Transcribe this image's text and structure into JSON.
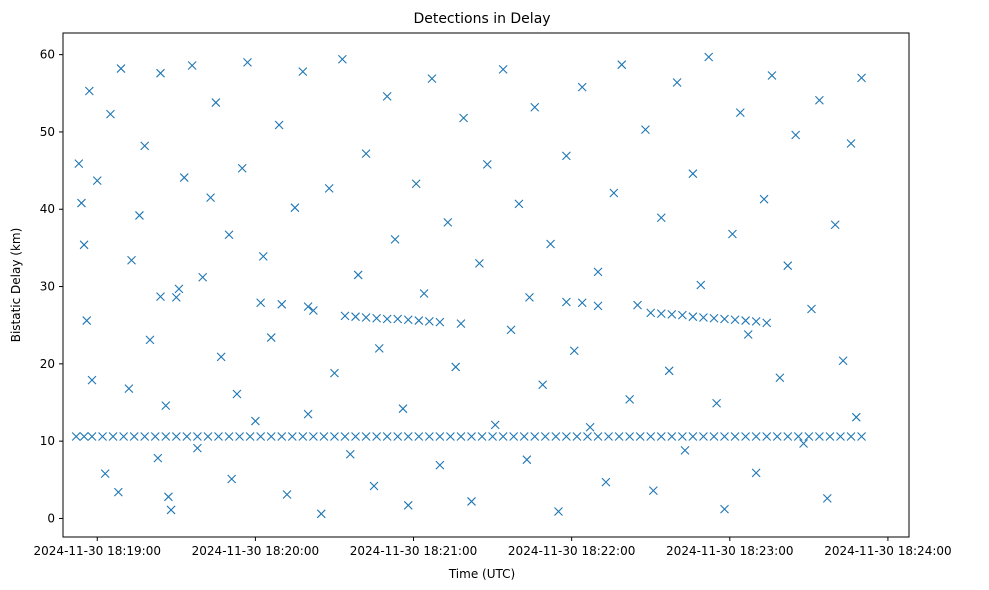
{
  "chart_data": {
    "type": "scatter",
    "title": "Detections in Delay",
    "xlabel": "Time (UTC)",
    "ylabel": "Bistatic Delay (km)",
    "x_unit": "time (UTC)",
    "xlim": [
      "2024-11-30 18:18:47",
      "2024-11-30 18:24:08"
    ],
    "ylim": [
      -2.4,
      62.8
    ],
    "x_ticks": [
      "2024-11-30 18:19:00",
      "2024-11-30 18:20:00",
      "2024-11-30 18:21:00",
      "2024-11-30 18:22:00",
      "2024-11-30 18:23:00",
      "2024-11-30 18:24:00"
    ],
    "y_ticks": [
      0,
      10,
      20,
      30,
      40,
      50,
      60
    ],
    "grid": false,
    "legend": "none",
    "marker": "x",
    "marker_color": "#1f77b4",
    "series": [
      {
        "note": "approximate reconstruction of the dense scatter; values read from the axes",
        "points": [
          [
            "2024-11-30 18:18:52",
            10.6
          ],
          [
            "2024-11-30 18:18:55",
            10.6
          ],
          [
            "2024-11-30 18:18:58",
            10.6
          ],
          [
            "2024-11-30 18:19:02",
            10.6
          ],
          [
            "2024-11-30 18:19:06",
            10.6
          ],
          [
            "2024-11-30 18:19:10",
            10.6
          ],
          [
            "2024-11-30 18:19:14",
            10.6
          ],
          [
            "2024-11-30 18:19:18",
            10.6
          ],
          [
            "2024-11-30 18:19:22",
            10.6
          ],
          [
            "2024-11-30 18:19:26",
            10.6
          ],
          [
            "2024-11-30 18:19:30",
            10.6
          ],
          [
            "2024-11-30 18:19:34",
            10.6
          ],
          [
            "2024-11-30 18:19:38",
            10.6
          ],
          [
            "2024-11-30 18:19:42",
            10.6
          ],
          [
            "2024-11-30 18:19:46",
            10.6
          ],
          [
            "2024-11-30 18:19:50",
            10.6
          ],
          [
            "2024-11-30 18:19:54",
            10.6
          ],
          [
            "2024-11-30 18:19:58",
            10.6
          ],
          [
            "2024-11-30 18:20:02",
            10.6
          ],
          [
            "2024-11-30 18:20:06",
            10.6
          ],
          [
            "2024-11-30 18:20:10",
            10.6
          ],
          [
            "2024-11-30 18:20:14",
            10.6
          ],
          [
            "2024-11-30 18:20:18",
            10.6
          ],
          [
            "2024-11-30 18:20:22",
            10.6
          ],
          [
            "2024-11-30 18:20:26",
            10.6
          ],
          [
            "2024-11-30 18:20:30",
            10.6
          ],
          [
            "2024-11-30 18:20:34",
            10.6
          ],
          [
            "2024-11-30 18:20:38",
            10.6
          ],
          [
            "2024-11-30 18:20:42",
            10.6
          ],
          [
            "2024-11-30 18:20:46",
            10.6
          ],
          [
            "2024-11-30 18:20:50",
            10.6
          ],
          [
            "2024-11-30 18:20:54",
            10.6
          ],
          [
            "2024-11-30 18:20:58",
            10.6
          ],
          [
            "2024-11-30 18:21:02",
            10.6
          ],
          [
            "2024-11-30 18:21:06",
            10.6
          ],
          [
            "2024-11-30 18:21:10",
            10.6
          ],
          [
            "2024-11-30 18:21:14",
            10.6
          ],
          [
            "2024-11-30 18:21:18",
            10.6
          ],
          [
            "2024-11-30 18:21:22",
            10.6
          ],
          [
            "2024-11-30 18:21:26",
            10.6
          ],
          [
            "2024-11-30 18:21:30",
            10.6
          ],
          [
            "2024-11-30 18:21:34",
            10.6
          ],
          [
            "2024-11-30 18:21:38",
            10.6
          ],
          [
            "2024-11-30 18:21:42",
            10.6
          ],
          [
            "2024-11-30 18:21:46",
            10.6
          ],
          [
            "2024-11-30 18:21:50",
            10.6
          ],
          [
            "2024-11-30 18:21:54",
            10.6
          ],
          [
            "2024-11-30 18:21:58",
            10.6
          ],
          [
            "2024-11-30 18:22:02",
            10.6
          ],
          [
            "2024-11-30 18:22:06",
            10.6
          ],
          [
            "2024-11-30 18:22:10",
            10.6
          ],
          [
            "2024-11-30 18:22:14",
            10.6
          ],
          [
            "2024-11-30 18:22:18",
            10.6
          ],
          [
            "2024-11-30 18:22:22",
            10.6
          ],
          [
            "2024-11-30 18:22:26",
            10.6
          ],
          [
            "2024-11-30 18:22:30",
            10.6
          ],
          [
            "2024-11-30 18:22:34",
            10.6
          ],
          [
            "2024-11-30 18:22:38",
            10.6
          ],
          [
            "2024-11-30 18:22:42",
            10.6
          ],
          [
            "2024-11-30 18:22:46",
            10.6
          ],
          [
            "2024-11-30 18:22:50",
            10.6
          ],
          [
            "2024-11-30 18:22:54",
            10.6
          ],
          [
            "2024-11-30 18:22:58",
            10.6
          ],
          [
            "2024-11-30 18:23:02",
            10.6
          ],
          [
            "2024-11-30 18:23:06",
            10.6
          ],
          [
            "2024-11-30 18:23:10",
            10.6
          ],
          [
            "2024-11-30 18:23:14",
            10.6
          ],
          [
            "2024-11-30 18:23:18",
            10.6
          ],
          [
            "2024-11-30 18:23:22",
            10.6
          ],
          [
            "2024-11-30 18:23:26",
            10.6
          ],
          [
            "2024-11-30 18:23:30",
            10.6
          ],
          [
            "2024-11-30 18:23:34",
            10.6
          ],
          [
            "2024-11-30 18:23:38",
            10.6
          ],
          [
            "2024-11-30 18:23:42",
            10.6
          ],
          [
            "2024-11-30 18:23:46",
            10.6
          ],
          [
            "2024-11-30 18:23:50",
            10.6
          ],
          [
            "2024-11-30 18:20:34",
            26.2
          ],
          [
            "2024-11-30 18:20:38",
            26.1
          ],
          [
            "2024-11-30 18:20:42",
            26.0
          ],
          [
            "2024-11-30 18:20:46",
            25.9
          ],
          [
            "2024-11-30 18:20:50",
            25.8
          ],
          [
            "2024-11-30 18:20:54",
            25.8
          ],
          [
            "2024-11-30 18:20:58",
            25.7
          ],
          [
            "2024-11-30 18:21:02",
            25.6
          ],
          [
            "2024-11-30 18:21:06",
            25.5
          ],
          [
            "2024-11-30 18:22:30",
            26.6
          ],
          [
            "2024-11-30 18:22:34",
            26.5
          ],
          [
            "2024-11-30 18:22:38",
            26.4
          ],
          [
            "2024-11-30 18:22:42",
            26.3
          ],
          [
            "2024-11-30 18:22:46",
            26.1
          ],
          [
            "2024-11-30 18:22:50",
            26.0
          ],
          [
            "2024-11-30 18:22:54",
            25.9
          ],
          [
            "2024-11-30 18:22:58",
            25.8
          ],
          [
            "2024-11-30 18:23:02",
            25.7
          ],
          [
            "2024-11-30 18:23:06",
            25.6
          ],
          [
            "2024-11-30 18:23:10",
            25.5
          ],
          [
            "2024-11-30 18:23:14",
            25.3
          ],
          [
            "2024-11-30 18:19:24",
            28.7
          ],
          [
            "2024-11-30 18:19:30",
            28.6
          ],
          [
            "2024-11-30 18:20:02",
            27.9
          ],
          [
            "2024-11-30 18:20:10",
            27.7
          ],
          [
            "2024-11-30 18:20:20",
            27.4
          ],
          [
            "2024-11-30 18:21:44",
            28.6
          ],
          [
            "2024-11-30 18:21:58",
            28.0
          ],
          [
            "2024-11-30 18:22:04",
            27.9
          ],
          [
            "2024-11-30 18:22:10",
            27.5
          ],
          [
            "2024-11-30 18:21:10",
            25.4
          ],
          [
            "2024-11-30 18:21:18",
            25.2
          ],
          [
            "2024-11-30 18:18:53",
            45.9
          ],
          [
            "2024-11-30 18:18:54",
            40.8
          ],
          [
            "2024-11-30 18:18:55",
            35.4
          ],
          [
            "2024-11-30 18:18:56",
            25.6
          ],
          [
            "2024-11-30 18:18:57",
            55.3
          ],
          [
            "2024-11-30 18:18:58",
            17.9
          ],
          [
            "2024-11-30 18:19:00",
            43.7
          ],
          [
            "2024-11-30 18:19:03",
            5.8
          ],
          [
            "2024-11-30 18:19:05",
            52.3
          ],
          [
            "2024-11-30 18:19:08",
            3.4
          ],
          [
            "2024-11-30 18:19:09",
            58.2
          ],
          [
            "2024-11-30 18:19:12",
            16.8
          ],
          [
            "2024-11-30 18:19:13",
            33.4
          ],
          [
            "2024-11-30 18:19:16",
            39.2
          ],
          [
            "2024-11-30 18:19:18",
            48.2
          ],
          [
            "2024-11-30 18:19:20",
            23.1
          ],
          [
            "2024-11-30 18:19:23",
            7.8
          ],
          [
            "2024-11-30 18:19:24",
            57.6
          ],
          [
            "2024-11-30 18:19:26",
            14.6
          ],
          [
            "2024-11-30 18:19:27",
            2.8
          ],
          [
            "2024-11-30 18:19:28",
            1.1
          ],
          [
            "2024-11-30 18:19:31",
            29.7
          ],
          [
            "2024-11-30 18:19:33",
            44.1
          ],
          [
            "2024-11-30 18:19:36",
            58.6
          ],
          [
            "2024-11-30 18:19:38",
            9.1
          ],
          [
            "2024-11-30 18:19:40",
            31.2
          ],
          [
            "2024-11-30 18:19:43",
            41.5
          ],
          [
            "2024-11-30 18:19:45",
            53.8
          ],
          [
            "2024-11-30 18:19:47",
            20.9
          ],
          [
            "2024-11-30 18:19:50",
            36.7
          ],
          [
            "2024-11-30 18:19:51",
            5.1
          ],
          [
            "2024-11-30 18:19:53",
            16.1
          ],
          [
            "2024-11-30 18:19:55",
            45.3
          ],
          [
            "2024-11-30 18:19:57",
            59.0
          ],
          [
            "2024-11-30 18:20:00",
            12.6
          ],
          [
            "2024-11-30 18:20:03",
            33.9
          ],
          [
            "2024-11-30 18:20:06",
            23.4
          ],
          [
            "2024-11-30 18:20:09",
            50.9
          ],
          [
            "2024-11-30 18:20:12",
            3.1
          ],
          [
            "2024-11-30 18:20:15",
            40.2
          ],
          [
            "2024-11-30 18:20:18",
            57.8
          ],
          [
            "2024-11-30 18:20:20",
            13.5
          ],
          [
            "2024-11-30 18:20:22",
            26.9
          ],
          [
            "2024-11-30 18:20:25",
            0.6
          ],
          [
            "2024-11-30 18:20:28",
            42.7
          ],
          [
            "2024-11-30 18:20:30",
            18.8
          ],
          [
            "2024-11-30 18:20:33",
            59.4
          ],
          [
            "2024-11-30 18:20:36",
            8.3
          ],
          [
            "2024-11-30 18:20:39",
            31.5
          ],
          [
            "2024-11-30 18:20:42",
            47.2
          ],
          [
            "2024-11-30 18:20:45",
            4.2
          ],
          [
            "2024-11-30 18:20:47",
            22.0
          ],
          [
            "2024-11-30 18:20:50",
            54.6
          ],
          [
            "2024-11-30 18:20:53",
            36.1
          ],
          [
            "2024-11-30 18:20:56",
            14.2
          ],
          [
            "2024-11-30 18:20:58",
            1.7
          ],
          [
            "2024-11-30 18:21:01",
            43.3
          ],
          [
            "2024-11-30 18:21:04",
            29.1
          ],
          [
            "2024-11-30 18:21:07",
            56.9
          ],
          [
            "2024-11-30 18:21:10",
            6.9
          ],
          [
            "2024-11-30 18:21:13",
            38.3
          ],
          [
            "2024-11-30 18:21:16",
            19.6
          ],
          [
            "2024-11-30 18:21:19",
            51.8
          ],
          [
            "2024-11-30 18:21:22",
            2.2
          ],
          [
            "2024-11-30 18:21:25",
            33.0
          ],
          [
            "2024-11-30 18:21:28",
            45.8
          ],
          [
            "2024-11-30 18:21:31",
            12.1
          ],
          [
            "2024-11-30 18:21:34",
            58.1
          ],
          [
            "2024-11-30 18:21:37",
            24.4
          ],
          [
            "2024-11-30 18:21:40",
            40.7
          ],
          [
            "2024-11-30 18:21:43",
            7.6
          ],
          [
            "2024-11-30 18:21:46",
            53.2
          ],
          [
            "2024-11-30 18:21:49",
            17.3
          ],
          [
            "2024-11-30 18:21:52",
            35.5
          ],
          [
            "2024-11-30 18:21:55",
            0.9
          ],
          [
            "2024-11-30 18:21:58",
            46.9
          ],
          [
            "2024-11-30 18:22:01",
            21.7
          ],
          [
            "2024-11-30 18:22:04",
            55.8
          ],
          [
            "2024-11-30 18:22:07",
            11.8
          ],
          [
            "2024-11-30 18:22:10",
            31.9
          ],
          [
            "2024-11-30 18:22:13",
            4.7
          ],
          [
            "2024-11-30 18:22:16",
            42.1
          ],
          [
            "2024-11-30 18:22:19",
            58.7
          ],
          [
            "2024-11-30 18:22:22",
            15.4
          ],
          [
            "2024-11-30 18:22:25",
            27.6
          ],
          [
            "2024-11-30 18:22:28",
            50.3
          ],
          [
            "2024-11-30 18:22:31",
            3.6
          ],
          [
            "2024-11-30 18:22:34",
            38.9
          ],
          [
            "2024-11-30 18:22:37",
            19.1
          ],
          [
            "2024-11-30 18:22:40",
            56.4
          ],
          [
            "2024-11-30 18:22:43",
            8.8
          ],
          [
            "2024-11-30 18:22:46",
            44.6
          ],
          [
            "2024-11-30 18:22:49",
            30.2
          ],
          [
            "2024-11-30 18:22:52",
            59.7
          ],
          [
            "2024-11-30 18:22:55",
            14.9
          ],
          [
            "2024-11-30 18:22:58",
            1.2
          ],
          [
            "2024-11-30 18:23:01",
            36.8
          ],
          [
            "2024-11-30 18:23:04",
            52.5
          ],
          [
            "2024-11-30 18:23:07",
            23.8
          ],
          [
            "2024-11-30 18:23:10",
            5.9
          ],
          [
            "2024-11-30 18:23:13",
            41.3
          ],
          [
            "2024-11-30 18:23:16",
            57.3
          ],
          [
            "2024-11-30 18:23:19",
            18.2
          ],
          [
            "2024-11-30 18:23:22",
            32.7
          ],
          [
            "2024-11-30 18:23:25",
            49.6
          ],
          [
            "2024-11-30 18:23:28",
            9.7
          ],
          [
            "2024-11-30 18:23:31",
            27.1
          ],
          [
            "2024-11-30 18:23:34",
            54.1
          ],
          [
            "2024-11-30 18:23:37",
            2.6
          ],
          [
            "2024-11-30 18:23:40",
            38.0
          ],
          [
            "2024-11-30 18:23:43",
            20.4
          ],
          [
            "2024-11-30 18:23:46",
            48.5
          ],
          [
            "2024-11-30 18:23:48",
            13.1
          ],
          [
            "2024-11-30 18:23:50",
            57.0
          ]
        ]
      }
    ]
  }
}
